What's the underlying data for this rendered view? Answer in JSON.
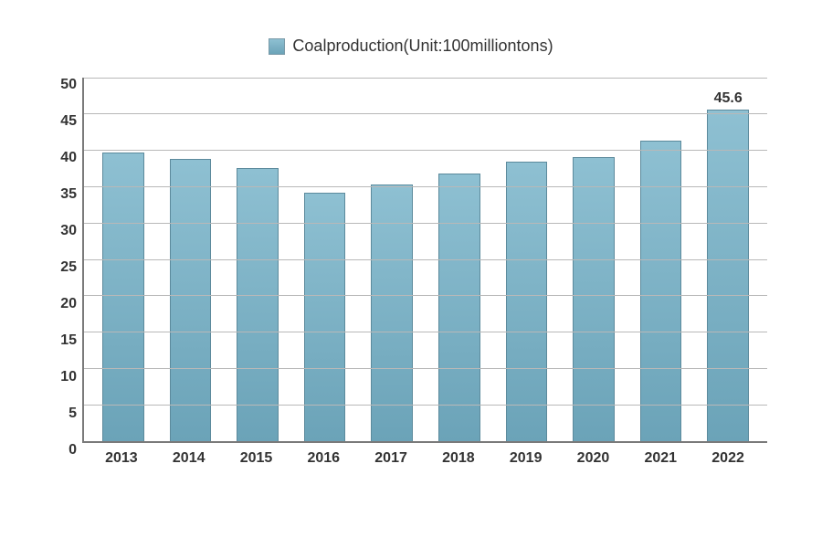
{
  "chart": {
    "type": "bar",
    "legend_label": "Coalproduction(Unit:100milliontons)",
    "legend_swatch_fill": "#85b7c9",
    "legend_swatch_border": "#7a9aa8",
    "categories": [
      "2013",
      "2014",
      "2015",
      "2016",
      "2017",
      "2018",
      "2019",
      "2020",
      "2021",
      "2022"
    ],
    "values": [
      39.7,
      38.7,
      37.5,
      34.1,
      35.2,
      36.8,
      38.4,
      39.0,
      41.3,
      45.6
    ],
    "value_labels": [
      "",
      "",
      "",
      "",
      "",
      "",
      "",
      "",
      "",
      "45.6"
    ],
    "ylim": [
      0,
      50
    ],
    "ytick_step": 5,
    "yticks": [
      "0",
      "5",
      "10",
      "15",
      "20",
      "25",
      "30",
      "35",
      "40",
      "45",
      "50"
    ],
    "bar_fill_top": "#8ec0d2",
    "bar_fill_bottom": "#6ba3b8",
    "bar_border": "#5c8a9c",
    "grid_color": "#b8b8b8",
    "axis_color": "#7a7a7a",
    "background_color": "#ffffff",
    "tick_fontsize": 16,
    "tick_fontweight": "bold",
    "tick_color": "#333333",
    "legend_fontsize": 18,
    "bar_width_ratio": 0.62
  }
}
